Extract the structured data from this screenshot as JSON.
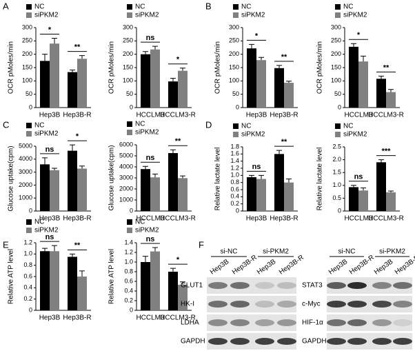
{
  "panel_labels": [
    "A",
    "B",
    "C",
    "D",
    "E",
    "F"
  ],
  "chart_data": [
    {
      "type": "bar",
      "y_label": "OCR pMoles/min",
      "categories": [
        "Hep3B",
        "Hep3B-R"
      ],
      "ylim": [
        0,
        300
      ],
      "yticks": [
        0,
        50,
        100,
        150,
        200,
        250,
        300
      ],
      "series": [
        {
          "name": "NC",
          "color": "#000000",
          "values": [
            175,
            133
          ],
          "errors": [
            25,
            8
          ]
        },
        {
          "name": "siPKM2",
          "color": "#808080",
          "values": [
            240,
            183
          ],
          "errors": [
            20,
            12
          ]
        }
      ],
      "significance": [
        "*",
        "**"
      ]
    },
    {
      "type": "bar",
      "y_label": "OCR pMoles/min",
      "categories": [
        "HCCLM3",
        "HCCLM3-R"
      ],
      "ylim": [
        0,
        300
      ],
      "yticks": [
        0,
        50,
        100,
        150,
        200,
        250,
        300
      ],
      "series": [
        {
          "name": "NC",
          "color": "#000000",
          "values": [
            200,
            98
          ],
          "errors": [
            10,
            12
          ]
        },
        {
          "name": "siPKM2",
          "color": "#808080",
          "values": [
            218,
            138
          ],
          "errors": [
            12,
            10
          ]
        }
      ],
      "significance": [
        "ns",
        "*"
      ]
    },
    {
      "type": "bar",
      "y_label": "OCR pMoles/min",
      "categories": [
        "Hep3B",
        "Hep3B-R"
      ],
      "ylim": [
        0,
        300
      ],
      "yticks": [
        0,
        50,
        100,
        150,
        200,
        250,
        300
      ],
      "series": [
        {
          "name": "NC",
          "color": "#000000",
          "values": [
            222,
            148
          ],
          "errors": [
            15,
            10
          ]
        },
        {
          "name": "siPKM2",
          "color": "#808080",
          "values": [
            178,
            93
          ],
          "errors": [
            10,
            6
          ]
        }
      ],
      "significance": [
        "*",
        "**"
      ]
    },
    {
      "type": "bar",
      "y_label": "OCR pMoles/min",
      "categories": [
        "HCCLM3",
        "HCCLM3-R"
      ],
      "ylim": [
        0,
        300
      ],
      "yticks": [
        0,
        50,
        100,
        150,
        200,
        250,
        300
      ],
      "series": [
        {
          "name": "NC",
          "color": "#000000",
          "values": [
            228,
            108
          ],
          "errors": [
            12,
            10
          ]
        },
        {
          "name": "siPKM2",
          "color": "#808080",
          "values": [
            173,
            58
          ],
          "errors": [
            20,
            10
          ]
        }
      ],
      "significance": [
        "*",
        "**"
      ]
    },
    {
      "type": "bar",
      "y_label": "Glucose uptake(cpm)",
      "categories": [
        "Hep3B",
        "Hep3B-R"
      ],
      "ylim": [
        0,
        5000
      ],
      "yticks": [
        0,
        1000,
        2000,
        3000,
        4000,
        5000
      ],
      "series": [
        {
          "name": "NC",
          "color": "#000000",
          "values": [
            3600,
            4650
          ],
          "errors": [
            500,
            450
          ]
        },
        {
          "name": "siPKM2",
          "color": "#808080",
          "values": [
            3150,
            3270
          ],
          "errors": [
            150,
            200
          ]
        }
      ],
      "significance": [
        "ns",
        "*"
      ]
    },
    {
      "type": "bar",
      "y_label": "Glucose uptake(cpm)",
      "categories": [
        "HCCLM3",
        "HCCLM3-R"
      ],
      "ylim": [
        0,
        6000
      ],
      "yticks": [
        0,
        1000,
        2000,
        3000,
        4000,
        5000,
        6000
      ],
      "series": [
        {
          "name": "NC",
          "color": "#000000",
          "values": [
            3800,
            5250
          ],
          "errors": [
            250,
            300
          ]
        },
        {
          "name": "siPKM2",
          "color": "#808080",
          "values": [
            3050,
            2980
          ],
          "errors": [
            300,
            200
          ]
        }
      ],
      "significance": [
        "ns",
        "**"
      ]
    },
    {
      "type": "bar",
      "y_label": "Relative lactate level",
      "categories": [
        "Hep3B",
        "Hep3B-R"
      ],
      "ylim": [
        0,
        1.8
      ],
      "yticks": [
        0,
        0.2,
        0.4,
        0.6,
        0.8,
        {
          "value": 1,
          "label": "1.0"
        },
        1.2,
        1.4,
        1.6,
        1.8
      ],
      "series": [
        {
          "name": "NC",
          "color": "#000000",
          "values": [
            0.95,
            1.6
          ],
          "errors": [
            0.05,
            0.1
          ]
        },
        {
          "name": "siPKM2",
          "color": "#808080",
          "values": [
            0.9,
            0.8
          ],
          "errors": [
            0.1,
            0.1
          ]
        }
      ],
      "significance": [
        "ns",
        "**"
      ]
    },
    {
      "type": "bar",
      "y_label": "Relative lactate level",
      "categories": [
        "HCCLM3",
        "HCCLM3-R"
      ],
      "ylim": [
        0,
        2.5
      ],
      "yticks": [
        0,
        0.5,
        {
          "value": 1,
          "label": "1.0"
        },
        1.5,
        {
          "value": 2,
          "label": "2.0"
        },
        2.5
      ],
      "series": [
        {
          "name": "NC",
          "color": "#000000",
          "values": [
            0.93,
            1.9
          ],
          "errors": [
            0.07,
            0.1
          ]
        },
        {
          "name": "siPKM2",
          "color": "#808080",
          "values": [
            0.8,
            0.73
          ],
          "errors": [
            0.1,
            0.05
          ]
        }
      ],
      "significance": [
        "ns",
        "***"
      ]
    },
    {
      "type": "bar",
      "y_label": "Relative ATP level",
      "categories": [
        "Hep3B",
        "Hep3B-R"
      ],
      "ylim": [
        0,
        1.2
      ],
      "yticks": [
        0,
        0.2,
        0.4,
        0.6,
        0.8,
        {
          "value": 1,
          "label": "1.0"
        },
        1.2
      ],
      "series": [
        {
          "name": "NC",
          "color": "#000000",
          "values": [
            1.05,
            0.95
          ],
          "errors": [
            0.05,
            0.05
          ]
        },
        {
          "name": "siPKM2",
          "color": "#808080",
          "values": [
            1.05,
            0.6
          ],
          "errors": [
            0.1,
            0.1
          ]
        }
      ],
      "significance": [
        "ns",
        "**"
      ]
    },
    {
      "type": "bar",
      "y_label": "Relative ATP level",
      "categories": [
        "HCCLM3",
        "HCCLM3-R"
      ],
      "ylim": [
        0,
        1.4
      ],
      "yticks": [
        0,
        0.2,
        0.4,
        0.6,
        0.8,
        {
          "value": 1,
          "label": "1.0"
        },
        1.2,
        1.4
      ],
      "series": [
        {
          "name": "NC",
          "color": "#000000",
          "values": [
            1.0,
            0.8
          ],
          "errors": [
            0.12,
            0.07
          ]
        },
        {
          "name": "siPKM2",
          "color": "#808080",
          "values": [
            1.22,
            0.53
          ],
          "errors": [
            0.08,
            0.06
          ]
        }
      ],
      "significance": [
        "ns",
        "*"
      ]
    }
  ],
  "blot": [
    {
      "groups": [
        "si-NC",
        "si-PKM2"
      ],
      "lanes": [
        "Hep3B",
        "Hep3B-R",
        "Hep3B",
        "Hep3B-R"
      ],
      "proteins": [
        "GLUT1",
        "HK-I",
        "LDHA",
        "GAPDH"
      ]
    },
    {
      "groups": [
        "si-NC",
        "si-PKM2"
      ],
      "lanes": [
        "Hep3B",
        "Hep3B-R",
        "Hep3B",
        "Hep3B-R"
      ],
      "proteins": [
        "STAT3",
        "c-Myc",
        "HIF-1α",
        "GAPDH"
      ]
    }
  ]
}
